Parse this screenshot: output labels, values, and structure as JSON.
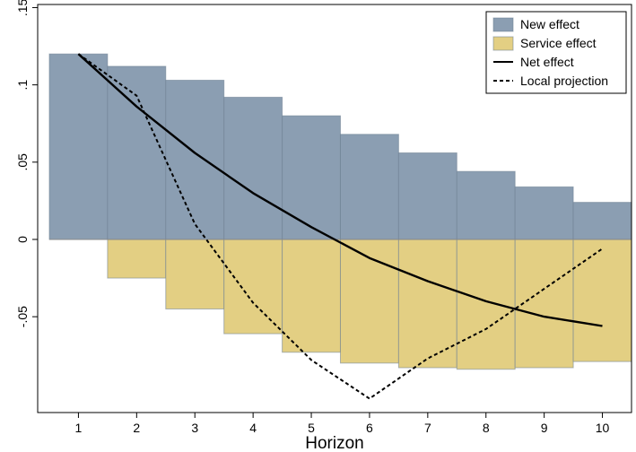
{
  "chart_data": {
    "type": "bar",
    "title": "",
    "xlabel": "Horizon",
    "ylabel": "",
    "categories": [
      1,
      2,
      3,
      4,
      5,
      6,
      7,
      8,
      9,
      10
    ],
    "ylim": [
      -0.112,
      0.152
    ],
    "xlim": [
      0.3,
      10.5
    ],
    "yticks": [
      0.15,
      0.1,
      0.05,
      0,
      -0.05
    ],
    "ytick_labels": [
      ".15",
      ".1",
      ".05",
      "0",
      "-.05"
    ],
    "grid": false,
    "legend_position": "top-right",
    "series": [
      {
        "name": "New effect",
        "kind": "bar",
        "color": "#8b9eb2",
        "values": [
          0.12,
          0.112,
          0.103,
          0.092,
          0.08,
          0.068,
          0.056,
          0.044,
          0.034,
          0.024
        ]
      },
      {
        "name": "Service effect",
        "kind": "bar",
        "color": "#e3cf83",
        "values": [
          0,
          -0.025,
          -0.045,
          -0.061,
          -0.073,
          -0.08,
          -0.083,
          -0.084,
          -0.083,
          -0.079
        ]
      },
      {
        "name": "Net effect",
        "kind": "line",
        "color": "#000000",
        "dash": "solid",
        "values": [
          0.12,
          0.086,
          0.056,
          0.03,
          0.008,
          -0.012,
          -0.027,
          -0.04,
          -0.05,
          -0.056
        ]
      },
      {
        "name": "Local projection",
        "kind": "line",
        "color": "#000000",
        "dash": "dashed",
        "values": [
          0.12,
          0.093,
          0.01,
          -0.041,
          -0.078,
          -0.103,
          -0.077,
          -0.058,
          -0.032,
          -0.006
        ]
      }
    ]
  }
}
